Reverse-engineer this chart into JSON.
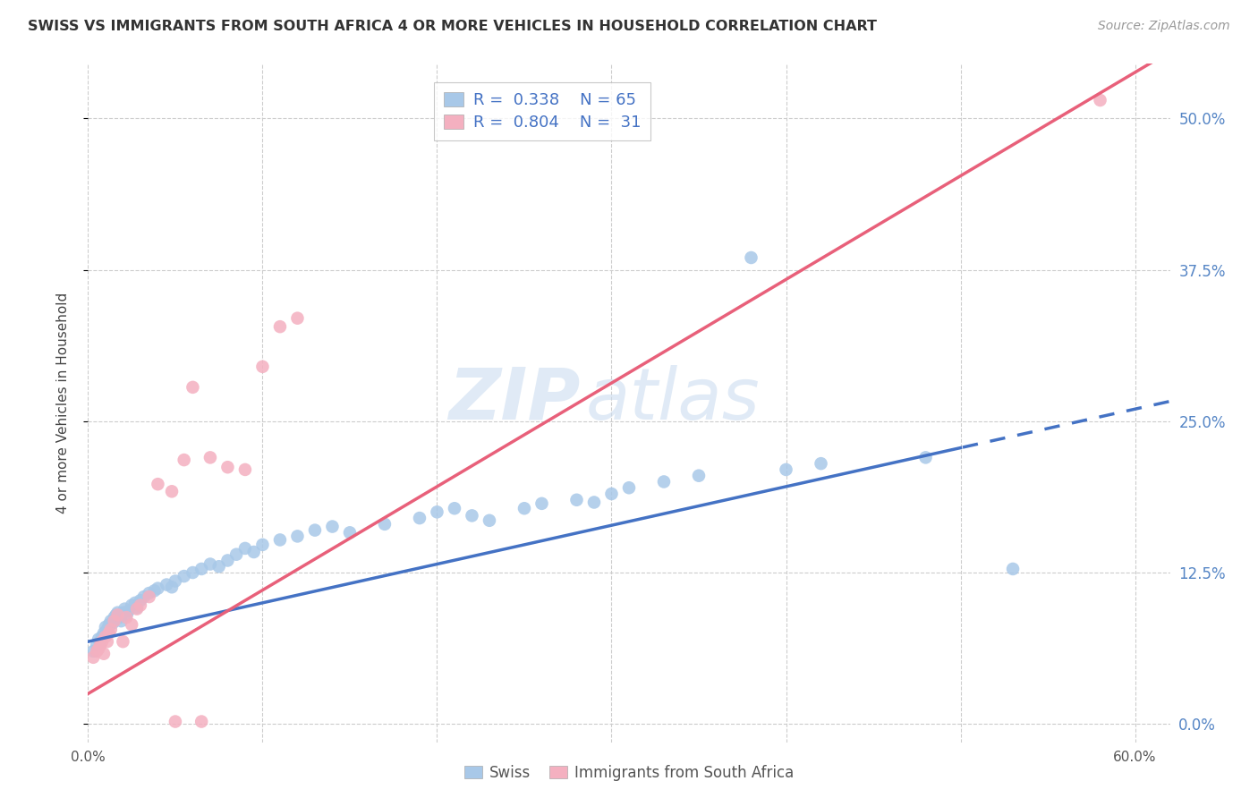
{
  "title": "SWISS VS IMMIGRANTS FROM SOUTH AFRICA 4 OR MORE VEHICLES IN HOUSEHOLD CORRELATION CHART",
  "source": "Source: ZipAtlas.com",
  "ylabel": "4 or more Vehicles in Household",
  "xlim": [
    0.0,
    0.62
  ],
  "ylim": [
    -0.015,
    0.545
  ],
  "yticks_right": [
    0.0,
    0.125,
    0.25,
    0.375,
    0.5
  ],
  "ytick_labels_right": [
    "0.0%",
    "12.5%",
    "25.0%",
    "37.5%",
    "50.0%"
  ],
  "xticks": [
    0.0,
    0.1,
    0.2,
    0.3,
    0.4,
    0.5,
    0.6
  ],
  "xtick_labels_shown": [
    "0.0%",
    "",
    "",
    "",
    "",
    "",
    "60.0%"
  ],
  "color_swiss": "#a8c8e8",
  "color_imm": "#f4b0c0",
  "color_line_swiss": "#4472c4",
  "color_line_imm": "#e8607a",
  "color_axis_right": "#5585c5",
  "watermark_zip": "ZIP",
  "watermark_atlas": "atlas",
  "swiss_line_solid_end": 0.5,
  "swiss_line_dash_end": 0.63,
  "imm_line_end": 0.61,
  "swiss_x": [
    0.003,
    0.005,
    0.006,
    0.007,
    0.008,
    0.009,
    0.01,
    0.011,
    0.012,
    0.013,
    0.014,
    0.015,
    0.016,
    0.017,
    0.018,
    0.019,
    0.02,
    0.021,
    0.022,
    0.023,
    0.025,
    0.027,
    0.028,
    0.03,
    0.032,
    0.035,
    0.038,
    0.04,
    0.045,
    0.048,
    0.05,
    0.055,
    0.06,
    0.065,
    0.07,
    0.075,
    0.08,
    0.085,
    0.09,
    0.095,
    0.1,
    0.11,
    0.12,
    0.13,
    0.14,
    0.15,
    0.17,
    0.19,
    0.2,
    0.21,
    0.22,
    0.23,
    0.25,
    0.26,
    0.28,
    0.29,
    0.3,
    0.31,
    0.33,
    0.35,
    0.4,
    0.42,
    0.48,
    0.53,
    0.38
  ],
  "swiss_y": [
    0.06,
    0.065,
    0.07,
    0.068,
    0.072,
    0.075,
    0.08,
    0.078,
    0.082,
    0.085,
    0.083,
    0.088,
    0.09,
    0.092,
    0.088,
    0.085,
    0.092,
    0.095,
    0.09,
    0.093,
    0.098,
    0.1,
    0.096,
    0.102,
    0.105,
    0.108,
    0.11,
    0.112,
    0.115,
    0.113,
    0.118,
    0.122,
    0.125,
    0.128,
    0.132,
    0.13,
    0.135,
    0.14,
    0.145,
    0.142,
    0.148,
    0.152,
    0.155,
    0.16,
    0.163,
    0.158,
    0.165,
    0.17,
    0.175,
    0.178,
    0.172,
    0.168,
    0.178,
    0.182,
    0.185,
    0.183,
    0.19,
    0.195,
    0.2,
    0.205,
    0.21,
    0.215,
    0.22,
    0.128,
    0.385
  ],
  "imm_x": [
    0.003,
    0.005,
    0.006,
    0.007,
    0.008,
    0.009,
    0.01,
    0.011,
    0.012,
    0.013,
    0.015,
    0.017,
    0.02,
    0.022,
    0.025,
    0.028,
    0.03,
    0.035,
    0.04,
    0.048,
    0.055,
    0.06,
    0.07,
    0.08,
    0.09,
    0.1,
    0.11,
    0.12,
    0.05,
    0.065,
    0.58
  ],
  "imm_y": [
    0.055,
    0.06,
    0.062,
    0.065,
    0.068,
    0.058,
    0.072,
    0.068,
    0.075,
    0.078,
    0.085,
    0.09,
    0.068,
    0.088,
    0.082,
    0.095,
    0.098,
    0.105,
    0.198,
    0.192,
    0.218,
    0.278,
    0.22,
    0.212,
    0.21,
    0.295,
    0.328,
    0.335,
    0.002,
    0.002,
    0.515
  ],
  "swiss_reg_m": 0.32,
  "swiss_reg_b": 0.068,
  "imm_reg_m": 0.855,
  "imm_reg_b": 0.025
}
